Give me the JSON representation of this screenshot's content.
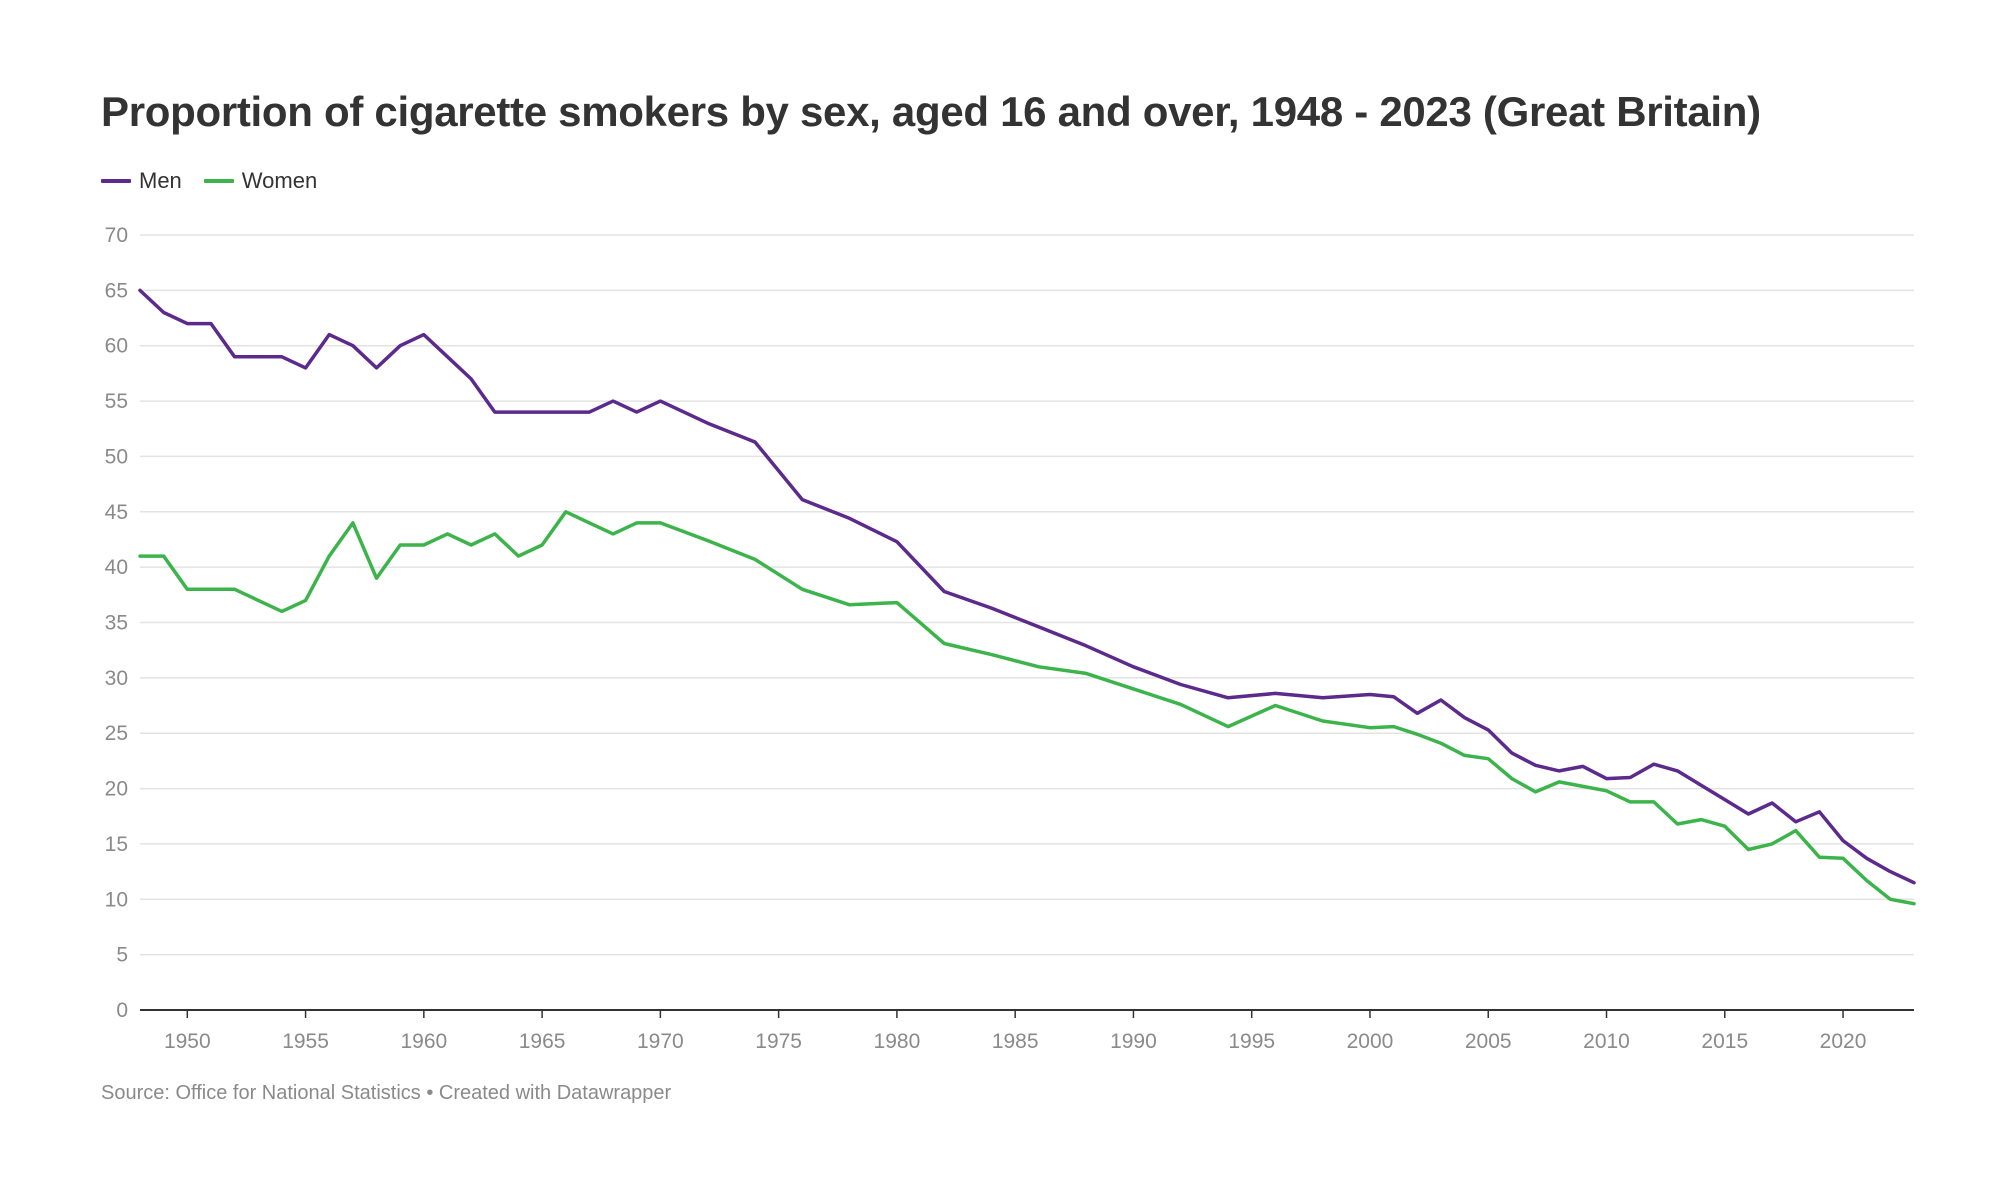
{
  "chart_data": {
    "type": "line",
    "title": "Proportion of cigarette smokers by sex, aged 16 and over, 1948 - 2023 (Great Britain)",
    "source": "Source: Office for National Statistics • Created with Datawrapper",
    "xlim": [
      1948,
      2023
    ],
    "ylim": [
      0,
      70
    ],
    "yticks": [
      0,
      5,
      10,
      15,
      20,
      25,
      30,
      35,
      40,
      45,
      50,
      55,
      60,
      65,
      70
    ],
    "xticks": [
      1950,
      1955,
      1960,
      1965,
      1970,
      1975,
      1980,
      1985,
      1990,
      1995,
      2000,
      2005,
      2010,
      2015,
      2020
    ],
    "grid": true,
    "legend_position": "top-left",
    "series": [
      {
        "name": "Men",
        "color": "#5b2a8c",
        "x": [
          1948,
          1949,
          1950,
          1951,
          1952,
          1953,
          1954,
          1955,
          1956,
          1957,
          1958,
          1959,
          1960,
          1961,
          1962,
          1963,
          1964,
          1965,
          1966,
          1967,
          1968,
          1969,
          1970,
          1972,
          1974,
          1976,
          1978,
          1980,
          1982,
          1984,
          1986,
          1988,
          1990,
          1992,
          1994,
          1996,
          1998,
          2000,
          2001,
          2002,
          2003,
          2004,
          2005,
          2006,
          2007,
          2008,
          2009,
          2010,
          2011,
          2012,
          2013,
          2014,
          2015,
          2016,
          2017,
          2018,
          2019,
          2020,
          2021,
          2022,
          2023
        ],
        "values": [
          65,
          63,
          62,
          62,
          59,
          59,
          59,
          58,
          61,
          60,
          58,
          60,
          61,
          59,
          57,
          54,
          54,
          54,
          54,
          54,
          55,
          54,
          55,
          53,
          51.3,
          46.1,
          44.4,
          42.3,
          37.8,
          36.3,
          34.6,
          32.9,
          31,
          29.4,
          28.2,
          28.6,
          28.2,
          28.5,
          28.3,
          26.8,
          28,
          26.4,
          25.3,
          23.2,
          22.1,
          21.6,
          22,
          20.9,
          21,
          22.2,
          21.6,
          20.3,
          19,
          17.7,
          18.7,
          17,
          17.9,
          15.3,
          13.7,
          12.5,
          11.5
        ]
      },
      {
        "name": "Women",
        "color": "#3cb44b",
        "x": [
          1948,
          1949,
          1950,
          1951,
          1952,
          1953,
          1954,
          1955,
          1956,
          1957,
          1958,
          1959,
          1960,
          1961,
          1962,
          1963,
          1964,
          1965,
          1966,
          1967,
          1968,
          1969,
          1970,
          1972,
          1974,
          1976,
          1978,
          1980,
          1982,
          1984,
          1986,
          1988,
          1990,
          1992,
          1994,
          1996,
          1998,
          2000,
          2001,
          2002,
          2003,
          2004,
          2005,
          2006,
          2007,
          2008,
          2009,
          2010,
          2011,
          2012,
          2013,
          2014,
          2015,
          2016,
          2017,
          2018,
          2019,
          2020,
          2021,
          2022,
          2023
        ],
        "values": [
          41,
          41,
          38,
          38,
          38,
          37,
          36,
          37,
          41,
          44,
          39,
          42,
          42,
          43,
          42,
          43,
          41,
          42,
          45,
          44,
          43,
          44,
          44,
          42.4,
          40.7,
          38,
          36.6,
          36.8,
          33.1,
          32.1,
          31,
          30.4,
          29,
          27.6,
          25.6,
          27.5,
          26.1,
          25.5,
          25.6,
          24.9,
          24.1,
          23,
          22.7,
          20.9,
          19.7,
          20.6,
          20.2,
          19.8,
          18.8,
          18.8,
          16.8,
          17.2,
          16.6,
          14.5,
          15,
          16.2,
          13.8,
          13.7,
          11.7,
          10,
          9.6
        ]
      }
    ]
  }
}
